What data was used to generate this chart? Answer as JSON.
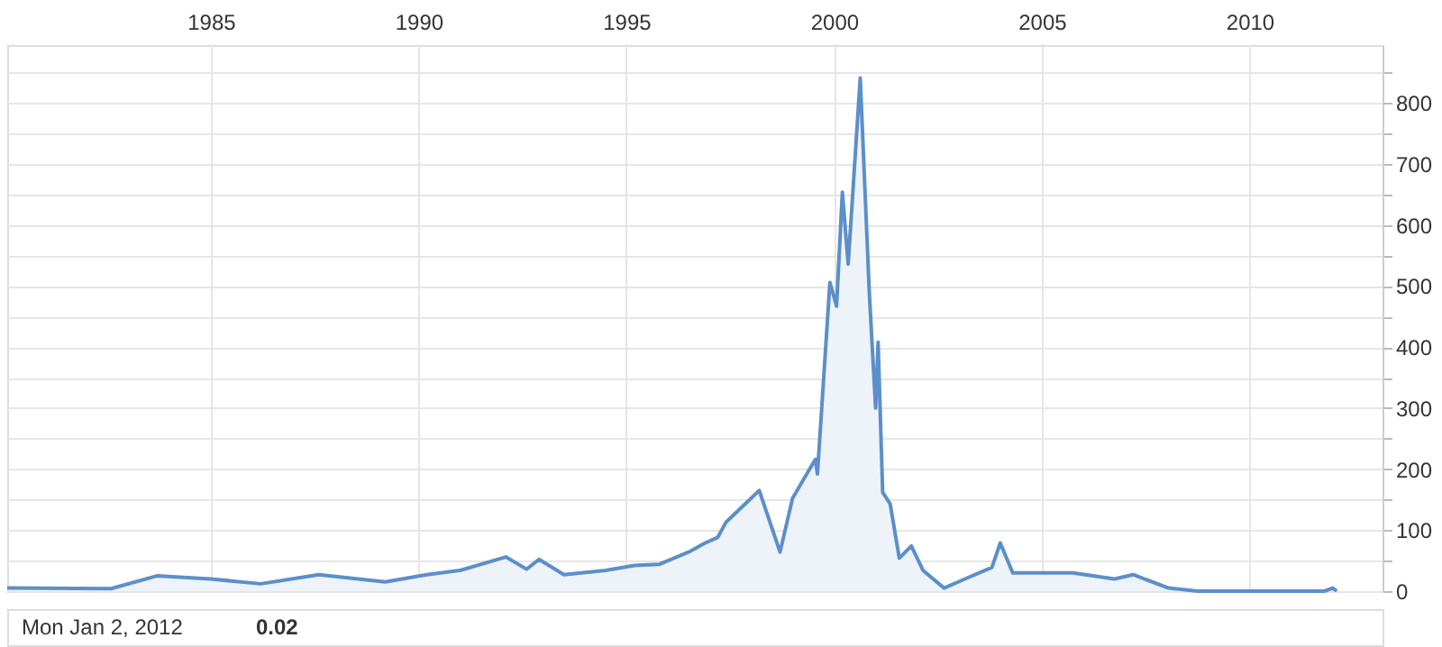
{
  "chart_data": {
    "type": "area",
    "x": [
      1980.1,
      1982.6,
      1983.7,
      1985.0,
      1986.2,
      1987.6,
      1989.2,
      1990.2,
      1991.0,
      1992.1,
      1992.6,
      1992.9,
      1993.5,
      1994.5,
      1995.2,
      1995.8,
      1996.5,
      1996.9,
      1997.2,
      1997.4,
      1998.2,
      1998.7,
      1999.0,
      1999.55,
      1999.6,
      1999.9,
      2000.06,
      2000.2,
      2000.34,
      2000.63,
      2000.85,
      2001.0,
      2001.06,
      2001.17,
      2001.35,
      2001.57,
      2001.86,
      2002.14,
      2002.65,
      2003.15,
      2003.8,
      2004.0,
      2004.3,
      2004.9,
      2005.75,
      2006.75,
      2007.2,
      2008.05,
      2008.75,
      2010.0,
      2011.8,
      2012.0,
      2012.1
    ],
    "series": [
      {
        "color": "#5b8fc9",
        "values": [
          5,
          4,
          25,
          20,
          12,
          27,
          15,
          27,
          34,
          56,
          36,
          52,
          27,
          34,
          42,
          44,
          64,
          79,
          88,
          113,
          165,
          64,
          152,
          216,
          192,
          506,
          467,
          654,
          536,
          841,
          487,
          300,
          408,
          162,
          143,
          54,
          74,
          34,
          5,
          20,
          39,
          79,
          30,
          30,
          30,
          20,
          27,
          5,
          0,
          0,
          0,
          5,
          0
        ]
      }
    ],
    "xlim": [
      1980.1,
      2013.2
    ],
    "xticks": [
      1985,
      1990,
      1995,
      2000,
      2005,
      2010
    ],
    "ylim": [
      0,
      895
    ],
    "yticks": [
      0,
      {
        "value": 50,
        "label": null
      },
      100,
      {
        "value": 150,
        "label": null
      },
      200,
      {
        "value": 250,
        "label": null
      },
      300,
      {
        "value": 350,
        "label": null
      },
      400,
      {
        "value": 450,
        "label": null
      },
      500,
      {
        "value": 550,
        "label": null
      },
      600,
      {
        "value": 650,
        "label": null
      },
      700,
      {
        "value": 750,
        "label": null
      },
      800,
      {
        "value": 850,
        "label": null
      }
    ],
    "grid": true,
    "annotations": [
      "Mon Jan 2, 2012",
      "0.02"
    ]
  }
}
